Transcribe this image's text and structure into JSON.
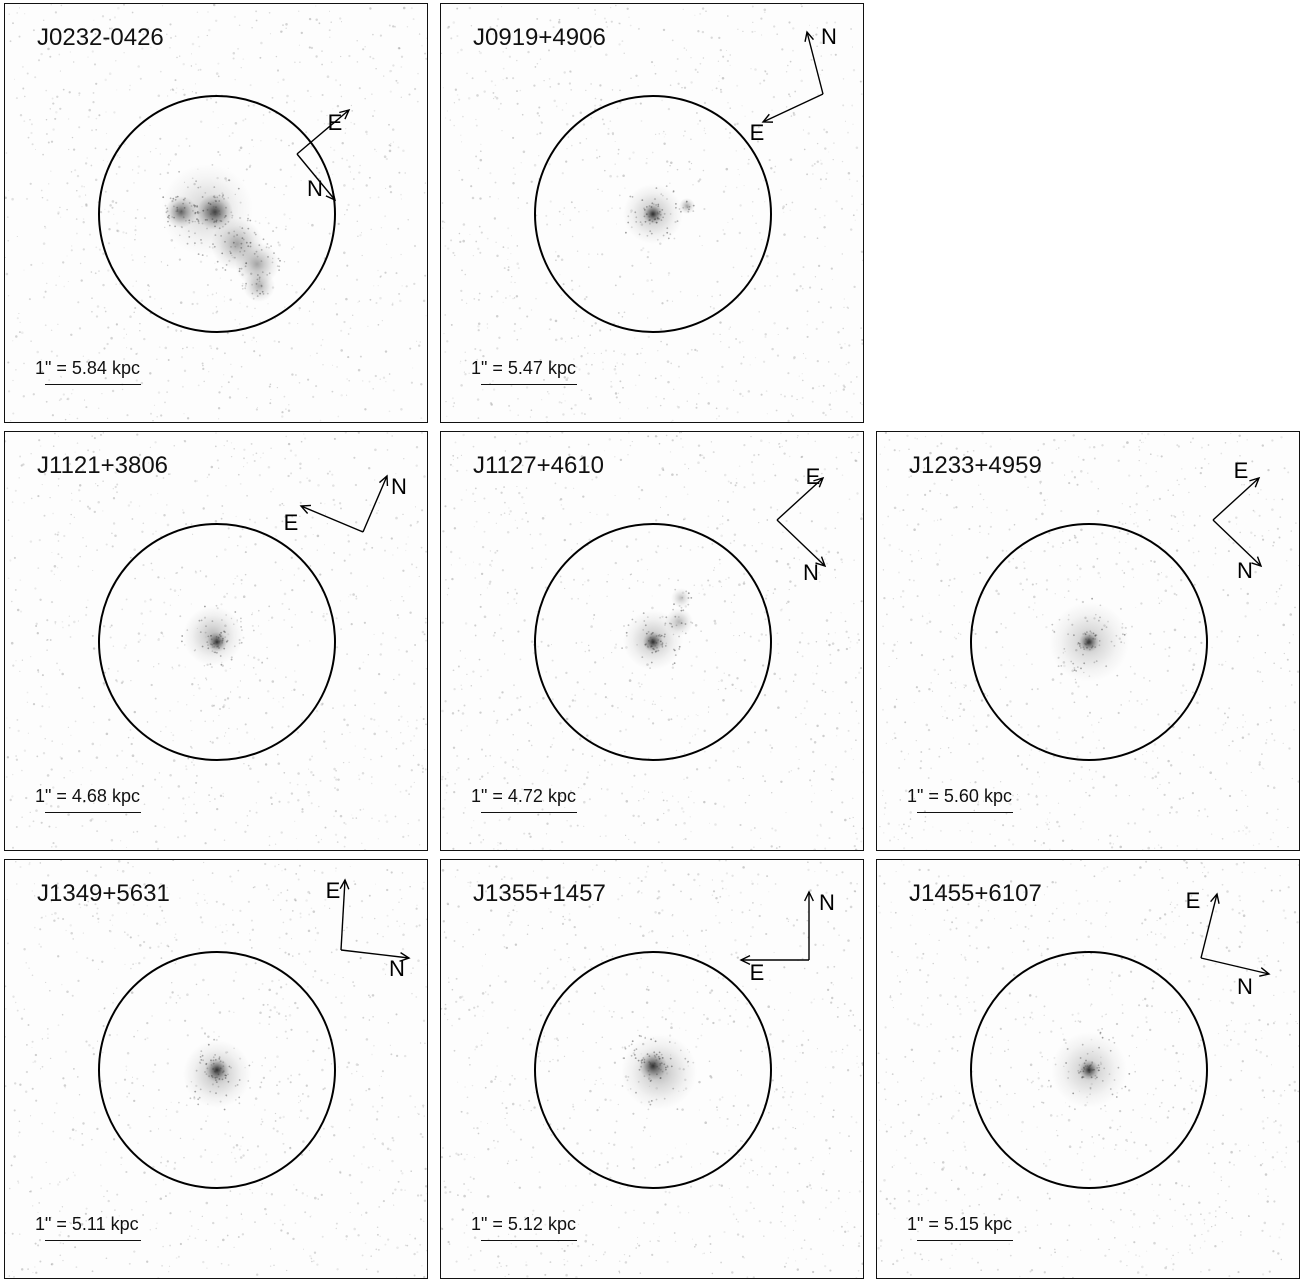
{
  "panels": [
    {
      "name": "J0232-0426",
      "scale": "1\" = 5.84 kpc",
      "row": 0,
      "col": 0,
      "blobs": [
        [
          -36,
          -2,
          16,
          0.75
        ],
        [
          -2,
          -2,
          18,
          0.9
        ],
        [
          20,
          30,
          26,
          0.45
        ],
        [
          40,
          50,
          22,
          0.45
        ],
        [
          42,
          72,
          16,
          0.4
        ],
        [
          -10,
          -4,
          46,
          0.25
        ]
      ],
      "arrows": [
        [
          80,
          -60,
          132,
          -104,
          "E",
          118,
          -90
        ],
        [
          80,
          -60,
          118,
          -14,
          "N",
          98,
          -24
        ]
      ]
    },
    {
      "name": "J0919+4906",
      "scale": "1\" = 5.47 kpc",
      "row": 0,
      "col": 1,
      "blobs": [
        [
          0,
          0,
          10,
          1.0
        ],
        [
          0,
          0,
          30,
          0.35
        ],
        [
          34,
          -8,
          8,
          0.45
        ]
      ],
      "arrows": [
        [
          170,
          -120,
          154,
          -182,
          "N",
          176,
          -176
        ],
        [
          170,
          -120,
          110,
          -92,
          "E",
          104,
          -80
        ]
      ]
    },
    {
      "name": "J1121+3806",
      "scale": "1\" = 4.68 kpc",
      "row": 1,
      "col": 0,
      "blobs": [
        [
          0,
          0,
          10,
          1.0
        ],
        [
          -4,
          -6,
          30,
          0.35
        ]
      ],
      "arrows": [
        [
          146,
          -110,
          170,
          -166,
          "N",
          182,
          -154
        ],
        [
          146,
          -110,
          84,
          -136,
          "E",
          74,
          -118
        ]
      ]
    },
    {
      "name": "J1127+4610",
      "scale": "1\" = 4.72 kpc",
      "row": 1,
      "col": 1,
      "blobs": [
        [
          0,
          0,
          10,
          1.0
        ],
        [
          0,
          -2,
          30,
          0.35
        ],
        [
          26,
          -20,
          14,
          0.35
        ],
        [
          28,
          -44,
          10,
          0.3
        ]
      ],
      "arrows": [
        [
          124,
          -122,
          170,
          -164,
          "E",
          160,
          -164
        ],
        [
          124,
          -122,
          172,
          -76,
          "N",
          158,
          -68
        ]
      ]
    },
    {
      "name": "J1233+4959",
      "scale": "1\" = 5.60 kpc",
      "row": 1,
      "col": 2,
      "blobs": [
        [
          0,
          0,
          10,
          1.0
        ],
        [
          0,
          0,
          40,
          0.3
        ]
      ],
      "arrows": [
        [
          124,
          -122,
          170,
          -164,
          "E",
          152,
          -170
        ],
        [
          124,
          -122,
          172,
          -76,
          "N",
          156,
          -70
        ]
      ]
    },
    {
      "name": "J1349+5631",
      "scale": "1\" = 5.11 kpc",
      "row": 2,
      "col": 0,
      "blobs": [
        [
          0,
          0,
          12,
          1.0
        ],
        [
          0,
          4,
          34,
          0.35
        ]
      ],
      "arrows": [
        [
          124,
          -120,
          128,
          -190,
          "E",
          116,
          -178
        ],
        [
          124,
          -120,
          192,
          -112,
          "N",
          180,
          -100
        ]
      ]
    },
    {
      "name": "J1355+1457",
      "scale": "1\" = 5.12 kpc",
      "row": 2,
      "col": 1,
      "blobs": [
        [
          0,
          -4,
          14,
          1.0
        ],
        [
          6,
          2,
          38,
          0.35
        ]
      ],
      "arrows": [
        [
          156,
          -110,
          156,
          -178,
          "N",
          174,
          -166
        ],
        [
          156,
          -110,
          88,
          -110,
          "E",
          104,
          -96
        ]
      ]
    },
    {
      "name": "J1455+6107",
      "scale": "1\" = 5.15 kpc",
      "row": 2,
      "col": 2,
      "blobs": [
        [
          0,
          0,
          10,
          1.0
        ],
        [
          0,
          0,
          38,
          0.3
        ]
      ],
      "arrows": [
        [
          112,
          -112,
          128,
          -176,
          "E",
          104,
          -168
        ],
        [
          112,
          -112,
          180,
          -96,
          "N",
          156,
          -82
        ]
      ]
    }
  ]
}
